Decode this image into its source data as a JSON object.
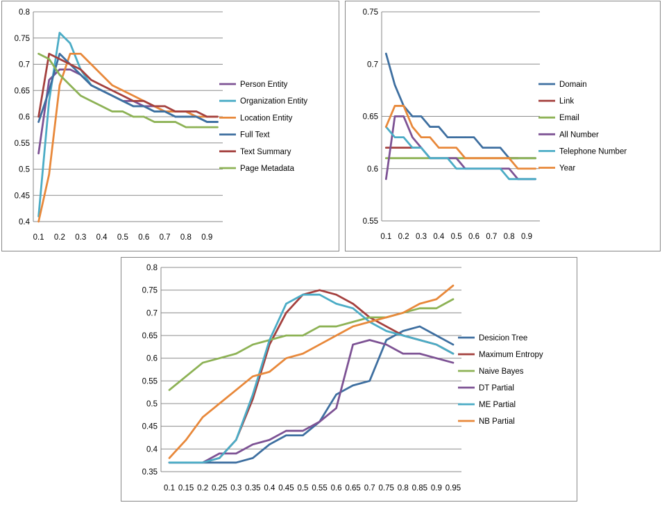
{
  "chart_data": [
    {
      "type": "line",
      "title": "",
      "xlabel": "",
      "ylabel": "",
      "x": [
        0.1,
        0.15,
        0.2,
        0.25,
        0.3,
        0.35,
        0.4,
        0.45,
        0.5,
        0.55,
        0.6,
        0.65,
        0.7,
        0.75,
        0.8,
        0.85,
        0.9,
        0.95
      ],
      "x_tick_labels": [
        "0.1",
        "0.2",
        "0.3",
        "0.4",
        "0.5",
        "0.6",
        "0.7",
        "0.8",
        "0.9"
      ],
      "ylim": [
        0.4,
        0.8
      ],
      "y_ticks": [
        0.4,
        0.45,
        0.5,
        0.55,
        0.6,
        0.65,
        0.7,
        0.75,
        0.8
      ],
      "y_tick_labels": [
        "0.4",
        "0.45",
        "0.5",
        "0.55",
        "0.6",
        "0.65",
        "0.7",
        "0.75",
        "0.8"
      ],
      "grid": "horizontal",
      "legend_position": "right",
      "series": [
        {
          "name": "Person Entity",
          "color": "#7D5294",
          "values": [
            0.53,
            0.67,
            0.69,
            0.69,
            0.68,
            0.66,
            0.65,
            0.64,
            0.63,
            0.63,
            0.62,
            0.62,
            0.61,
            0.61,
            0.61,
            0.6,
            0.59,
            0.59
          ]
        },
        {
          "name": "Organization Entity",
          "color": "#4BACC6",
          "values": [
            0.41,
            0.63,
            0.76,
            0.74,
            0.69,
            0.66,
            0.65,
            0.64,
            0.63,
            0.62,
            0.62,
            0.61,
            0.61,
            0.6,
            0.6,
            0.6,
            0.59,
            0.59
          ]
        },
        {
          "name": "Location Entity",
          "color": "#E8883A",
          "values": [
            0.4,
            0.49,
            0.66,
            0.72,
            0.72,
            0.7,
            0.68,
            0.66,
            0.65,
            0.64,
            0.63,
            0.62,
            0.61,
            0.61,
            0.61,
            0.6,
            0.6,
            0.6
          ]
        },
        {
          "name": "Full Text",
          "color": "#3E6FA0",
          "values": [
            0.59,
            0.65,
            0.72,
            0.7,
            0.68,
            0.66,
            0.65,
            0.64,
            0.63,
            0.62,
            0.62,
            0.61,
            0.61,
            0.6,
            0.6,
            0.6,
            0.59,
            0.59
          ]
        },
        {
          "name": "Text Summary",
          "color": "#A4403E",
          "values": [
            0.6,
            0.72,
            0.71,
            0.7,
            0.69,
            0.67,
            0.66,
            0.65,
            0.64,
            0.63,
            0.63,
            0.62,
            0.62,
            0.61,
            0.61,
            0.61,
            0.6,
            0.6
          ]
        },
        {
          "name": "Page Metadata",
          "color": "#8DB255",
          "values": [
            0.72,
            0.71,
            0.68,
            0.66,
            0.64,
            0.63,
            0.62,
            0.61,
            0.61,
            0.6,
            0.6,
            0.59,
            0.59,
            0.59,
            0.58,
            0.58,
            0.58,
            0.58
          ]
        }
      ]
    },
    {
      "type": "line",
      "title": "",
      "xlabel": "",
      "ylabel": "",
      "x": [
        0.1,
        0.15,
        0.2,
        0.25,
        0.3,
        0.35,
        0.4,
        0.45,
        0.5,
        0.55,
        0.6,
        0.65,
        0.7,
        0.75,
        0.8,
        0.85,
        0.9,
        0.95
      ],
      "x_tick_labels": [
        "0.1",
        "0.2",
        "0.3",
        "0.4",
        "0.5",
        "0.6",
        "0.7",
        "0.8",
        "0.9"
      ],
      "ylim": [
        0.55,
        0.75
      ],
      "y_ticks": [
        0.55,
        0.6,
        0.65,
        0.7,
        0.75
      ],
      "y_tick_labels": [
        "0.55",
        "0.6",
        "0.65",
        "0.7",
        "0.75"
      ],
      "grid": "horizontal",
      "legend_position": "right",
      "series": [
        {
          "name": "Domain",
          "color": "#3E6FA0",
          "values": [
            0.71,
            0.68,
            0.66,
            0.65,
            0.65,
            0.64,
            0.64,
            0.63,
            0.63,
            0.63,
            0.63,
            0.62,
            0.62,
            0.62,
            0.61,
            0.61,
            0.61,
            0.61
          ]
        },
        {
          "name": "Link",
          "color": "#A4403E",
          "values": [
            0.62,
            0.62,
            0.62,
            0.62,
            0.62,
            null,
            null,
            null,
            null,
            null,
            null,
            null,
            null,
            null,
            0.61,
            0.61,
            null,
            null
          ]
        },
        {
          "name": "Email",
          "color": "#8DB255",
          "values": [
            0.61,
            0.61,
            0.61,
            0.61,
            0.61,
            0.61,
            0.61,
            0.61,
            0.61,
            0.61,
            0.61,
            0.61,
            0.61,
            0.61,
            0.61,
            0.61,
            0.61,
            0.61
          ]
        },
        {
          "name": "All Number",
          "color": "#7D5294",
          "values": [
            0.59,
            0.65,
            0.65,
            0.63,
            0.62,
            0.61,
            0.61,
            0.61,
            0.61,
            0.6,
            0.6,
            0.6,
            0.6,
            0.6,
            0.6,
            0.59,
            0.59,
            0.59
          ]
        },
        {
          "name": "Telephone Number",
          "color": "#4BACC6",
          "values": [
            0.64,
            0.63,
            0.63,
            0.62,
            0.62,
            0.61,
            0.61,
            0.61,
            0.6,
            0.6,
            0.6,
            0.6,
            0.6,
            0.6,
            0.59,
            0.59,
            0.59,
            0.59
          ]
        },
        {
          "name": "Year",
          "color": "#E8883A",
          "values": [
            0.64,
            0.66,
            0.66,
            0.64,
            0.63,
            0.63,
            0.62,
            0.62,
            0.62,
            0.61,
            0.61,
            0.61,
            0.61,
            0.61,
            0.61,
            0.6,
            0.6,
            0.6
          ]
        }
      ]
    },
    {
      "type": "line",
      "title": "",
      "xlabel": "",
      "ylabel": "",
      "x": [
        0.1,
        0.15,
        0.2,
        0.25,
        0.3,
        0.35,
        0.4,
        0.45,
        0.5,
        0.55,
        0.6,
        0.65,
        0.7,
        0.75,
        0.8,
        0.85,
        0.9,
        0.95
      ],
      "x_tick_labels": [
        "0.1",
        "0.15",
        "0.2",
        "0.25",
        "0.3",
        "0.35",
        "0.4",
        "0.45",
        "0.5",
        "0.55",
        "0.6",
        "0.65",
        "0.7",
        "0.75",
        "0.8",
        "0.85",
        "0.9",
        "0.95"
      ],
      "ylim": [
        0.35,
        0.8
      ],
      "y_ticks": [
        0.35,
        0.4,
        0.45,
        0.5,
        0.55,
        0.6,
        0.65,
        0.7,
        0.75,
        0.8
      ],
      "y_tick_labels": [
        "0.35",
        "0.4",
        "0.45",
        "0.5",
        "0.55",
        "0.6",
        "0.65",
        "0.7",
        "0.75",
        "0.8"
      ],
      "grid": "horizontal",
      "legend_position": "right",
      "series": [
        {
          "name": "Desicion Tree",
          "color": "#3E6FA0",
          "values": [
            0.37,
            0.37,
            0.37,
            0.37,
            0.37,
            0.38,
            0.41,
            0.43,
            0.43,
            0.46,
            0.52,
            0.54,
            0.55,
            0.64,
            0.66,
            0.67,
            0.65,
            0.63
          ]
        },
        {
          "name": "Maximum Entropy",
          "color": "#A4403E",
          "values": [
            0.37,
            0.37,
            0.37,
            0.38,
            0.42,
            0.51,
            0.63,
            0.7,
            0.74,
            0.75,
            0.74,
            0.72,
            0.69,
            0.67,
            0.65,
            0.64,
            0.63,
            0.61
          ]
        },
        {
          "name": "Naive Bayes",
          "color": "#8DB255",
          "values": [
            0.53,
            0.56,
            0.59,
            0.6,
            0.61,
            0.63,
            0.64,
            0.65,
            0.65,
            0.67,
            0.67,
            0.68,
            0.69,
            0.69,
            0.7,
            0.71,
            0.71,
            0.73
          ]
        },
        {
          "name": "DT Partial",
          "color": "#7D5294",
          "values": [
            0.37,
            0.37,
            0.37,
            0.39,
            0.39,
            0.41,
            0.42,
            0.44,
            0.44,
            0.46,
            0.49,
            0.63,
            0.64,
            0.63,
            0.61,
            0.61,
            0.6,
            0.59
          ]
        },
        {
          "name": "ME Partial",
          "color": "#4BACC6",
          "values": [
            0.37,
            0.37,
            0.37,
            0.38,
            0.42,
            0.52,
            0.64,
            0.72,
            0.74,
            0.74,
            0.72,
            0.71,
            0.68,
            0.66,
            0.65,
            0.64,
            0.63,
            0.61
          ]
        },
        {
          "name": "NB Partial",
          "color": "#E8883A",
          "values": [
            0.38,
            0.42,
            0.47,
            0.5,
            0.53,
            0.56,
            0.57,
            0.6,
            0.61,
            0.63,
            0.65,
            0.67,
            0.68,
            0.69,
            0.7,
            0.72,
            0.73,
            0.76
          ]
        }
      ]
    }
  ]
}
